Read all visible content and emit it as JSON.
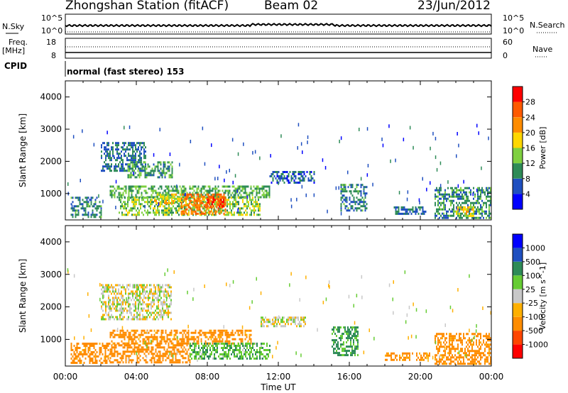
{
  "header": {
    "station": "Zhongshan Station (fitACF)",
    "beam": "Beam 02",
    "date": "23/Jun/2012"
  },
  "params": {
    "nsky_label": "N.Sky",
    "nsky_ticks": [
      "10^5",
      "10^0"
    ],
    "nsearch_label": "N.Search",
    "nsearch_ticks": [
      "10^5",
      "10^0"
    ],
    "freq_label": "Freq.",
    "freq_unit": "[MHz]",
    "freq_ticks": [
      "18",
      "8"
    ],
    "nave_label": "Nave",
    "nave_ticks": [
      "60",
      "0"
    ],
    "cpid_label": "CPID",
    "cpid_value": "normal (fast stereo) 153"
  },
  "axes": {
    "ylabel": "Slant Range [km]",
    "yticks": [
      "4000",
      "3000",
      "2000",
      "1000"
    ],
    "xlabel": "Time UT",
    "xticks": [
      "00:00",
      "04:00",
      "08:00",
      "12:00",
      "16:00",
      "20:00",
      "00:00"
    ]
  },
  "colors": {
    "power": [
      "#0000ff",
      "#1f4fc0",
      "#2e8b57",
      "#7fd040",
      "#ffd700",
      "#ff8c00",
      "#ff5a00",
      "#ff0000"
    ],
    "velocity": [
      "#ff0000",
      "#ff4500",
      "#ff8c00",
      "#ffb000",
      "#c8c8c8",
      "#66cc33",
      "#2e8b57",
      "#1f4fc0",
      "#0000ff"
    ]
  },
  "chart_data": [
    {
      "type": "heatmap",
      "title": "",
      "xlabel": "Time UT",
      "ylabel": "Slant Range [km]",
      "x_range": [
        "00:00",
        "24:00"
      ],
      "ylim": [
        180,
        4500
      ],
      "colorbar": {
        "label": "Power [dB]",
        "ticks": [
          "28",
          "24",
          "20",
          "16",
          "12",
          "8",
          "4"
        ],
        "range": [
          0,
          30
        ]
      },
      "regions": [
        {
          "t0": 0.3,
          "t1": 2.0,
          "r0": 300,
          "r1": 900,
          "value": 9
        },
        {
          "t0": 2.0,
          "t1": 4.5,
          "r0": 1700,
          "r1": 2600,
          "value": 8
        },
        {
          "t0": 3.5,
          "t1": 6.0,
          "r0": 1500,
          "r1": 2000,
          "value": 11
        },
        {
          "t0": 2.5,
          "t1": 11.5,
          "r0": 900,
          "r1": 1250,
          "value": 12
        },
        {
          "t0": 3.0,
          "t1": 11.0,
          "r0": 350,
          "r1": 900,
          "value": 14
        },
        {
          "t0": 6.5,
          "t1": 9.0,
          "r0": 400,
          "r1": 1000,
          "value": 24
        },
        {
          "t0": 8.0,
          "t1": 9.0,
          "r0": 600,
          "r1": 900,
          "value": 28
        },
        {
          "t0": 5.0,
          "t1": 6.5,
          "r0": 700,
          "r1": 1000,
          "value": 18
        },
        {
          "t0": 11.5,
          "t1": 14.0,
          "r0": 1350,
          "r1": 1700,
          "value": 7
        },
        {
          "t0": 15.5,
          "t1": 17.0,
          "r0": 450,
          "r1": 1300,
          "value": 9
        },
        {
          "t0": 18.5,
          "t1": 20.3,
          "r0": 350,
          "r1": 600,
          "value": 8
        },
        {
          "t0": 20.8,
          "t1": 24.0,
          "r0": 250,
          "r1": 1200,
          "value": 10
        },
        {
          "t0": 22.0,
          "t1": 23.0,
          "r0": 300,
          "r1": 600,
          "value": 18
        }
      ]
    },
    {
      "type": "heatmap",
      "title": "",
      "xlabel": "Time UT",
      "ylabel": "Slant Range [km]",
      "x_range": [
        "00:00",
        "24:00"
      ],
      "ylim": [
        180,
        4500
      ],
      "colorbar": {
        "label": "Velocity [m s^-1]",
        "ticks": [
          "1000",
          "500",
          "100",
          "25",
          "-25",
          "-100",
          "-500",
          "-1000"
        ],
        "range": [
          -1000,
          1000
        ]
      },
      "regions": [
        {
          "t0": 0.3,
          "t1": 2.5,
          "r0": 300,
          "r1": 900,
          "value": -150
        },
        {
          "t0": 2.0,
          "t1": 6.0,
          "r0": 1600,
          "r1": 2700,
          "value": 0
        },
        {
          "t0": 2.5,
          "t1": 10.5,
          "r0": 850,
          "r1": 1300,
          "value": -150
        },
        {
          "t0": 2.5,
          "t1": 7.0,
          "r0": 300,
          "r1": 850,
          "value": -200
        },
        {
          "t0": 7.0,
          "t1": 11.5,
          "r0": 400,
          "r1": 900,
          "value": 80
        },
        {
          "t0": 11.0,
          "t1": 13.5,
          "r0": 1400,
          "r1": 1700,
          "value": 0
        },
        {
          "t0": 15.0,
          "t1": 16.5,
          "r0": 500,
          "r1": 1400,
          "value": 120
        },
        {
          "t0": 18.0,
          "t1": 20.5,
          "r0": 350,
          "r1": 600,
          "value": -150
        },
        {
          "t0": 20.8,
          "t1": 24.0,
          "r0": 250,
          "r1": 1200,
          "value": -150
        }
      ]
    }
  ]
}
